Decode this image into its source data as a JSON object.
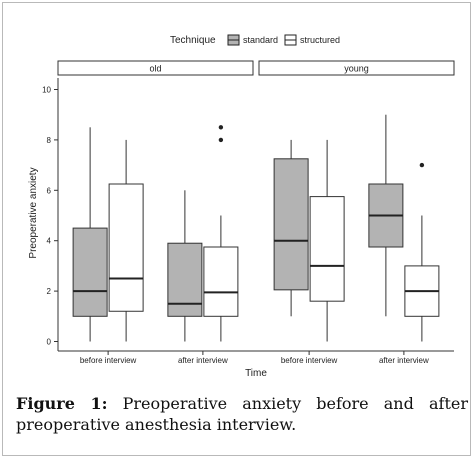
{
  "caption": {
    "label": "Figure 1:",
    "text": "Preoperative anxiety before and after preoperative anesthesia interview."
  },
  "chart_data": {
    "type": "boxplot",
    "legend": {
      "title": "Technique",
      "position": "top",
      "entries": [
        {
          "name": "standard",
          "color": "#b3b3b3"
        },
        {
          "name": "structured",
          "color": "#ffffff"
        }
      ]
    },
    "xlabel": "Time",
    "ylabel": "Preoperative anxiety",
    "ylim": [
      0,
      10
    ],
    "yticks": [
      0,
      2,
      4,
      6,
      8,
      10
    ],
    "categories": [
      "before interview",
      "after interview"
    ],
    "grid": false,
    "panels": [
      {
        "name": "old",
        "groups": [
          {
            "category": "before interview",
            "boxes": [
              {
                "series": "standard",
                "min": 0,
                "q1": 1,
                "median": 2,
                "q3": 4.5,
                "max": 8.5,
                "outliers": []
              },
              {
                "series": "structured",
                "min": 0,
                "q1": 1.2,
                "median": 2.5,
                "q3": 6.25,
                "max": 8,
                "outliers": []
              }
            ]
          },
          {
            "category": "after interview",
            "boxes": [
              {
                "series": "standard",
                "min": 0,
                "q1": 1,
                "median": 1.5,
                "q3": 3.9,
                "max": 6,
                "outliers": []
              },
              {
                "series": "structured",
                "min": 0,
                "q1": 1,
                "median": 1.95,
                "q3": 3.75,
                "max": 5,
                "outliers": [
                  8,
                  8.5
                ]
              }
            ]
          }
        ]
      },
      {
        "name": "young",
        "groups": [
          {
            "category": "before interview",
            "boxes": [
              {
                "series": "standard",
                "min": 1,
                "q1": 2.05,
                "median": 4,
                "q3": 7.25,
                "max": 8,
                "outliers": []
              },
              {
                "series": "structured",
                "min": 0,
                "q1": 1.6,
                "median": 3,
                "q3": 5.75,
                "max": 8,
                "outliers": []
              }
            ]
          },
          {
            "category": "after interview",
            "boxes": [
              {
                "series": "standard",
                "min": 1,
                "q1": 3.75,
                "median": 5,
                "q3": 6.25,
                "max": 9,
                "outliers": []
              },
              {
                "series": "structured",
                "min": 0,
                "q1": 1,
                "median": 2,
                "q3": 3,
                "max": 5,
                "outliers": [
                  7
                ]
              }
            ]
          }
        ]
      }
    ]
  }
}
